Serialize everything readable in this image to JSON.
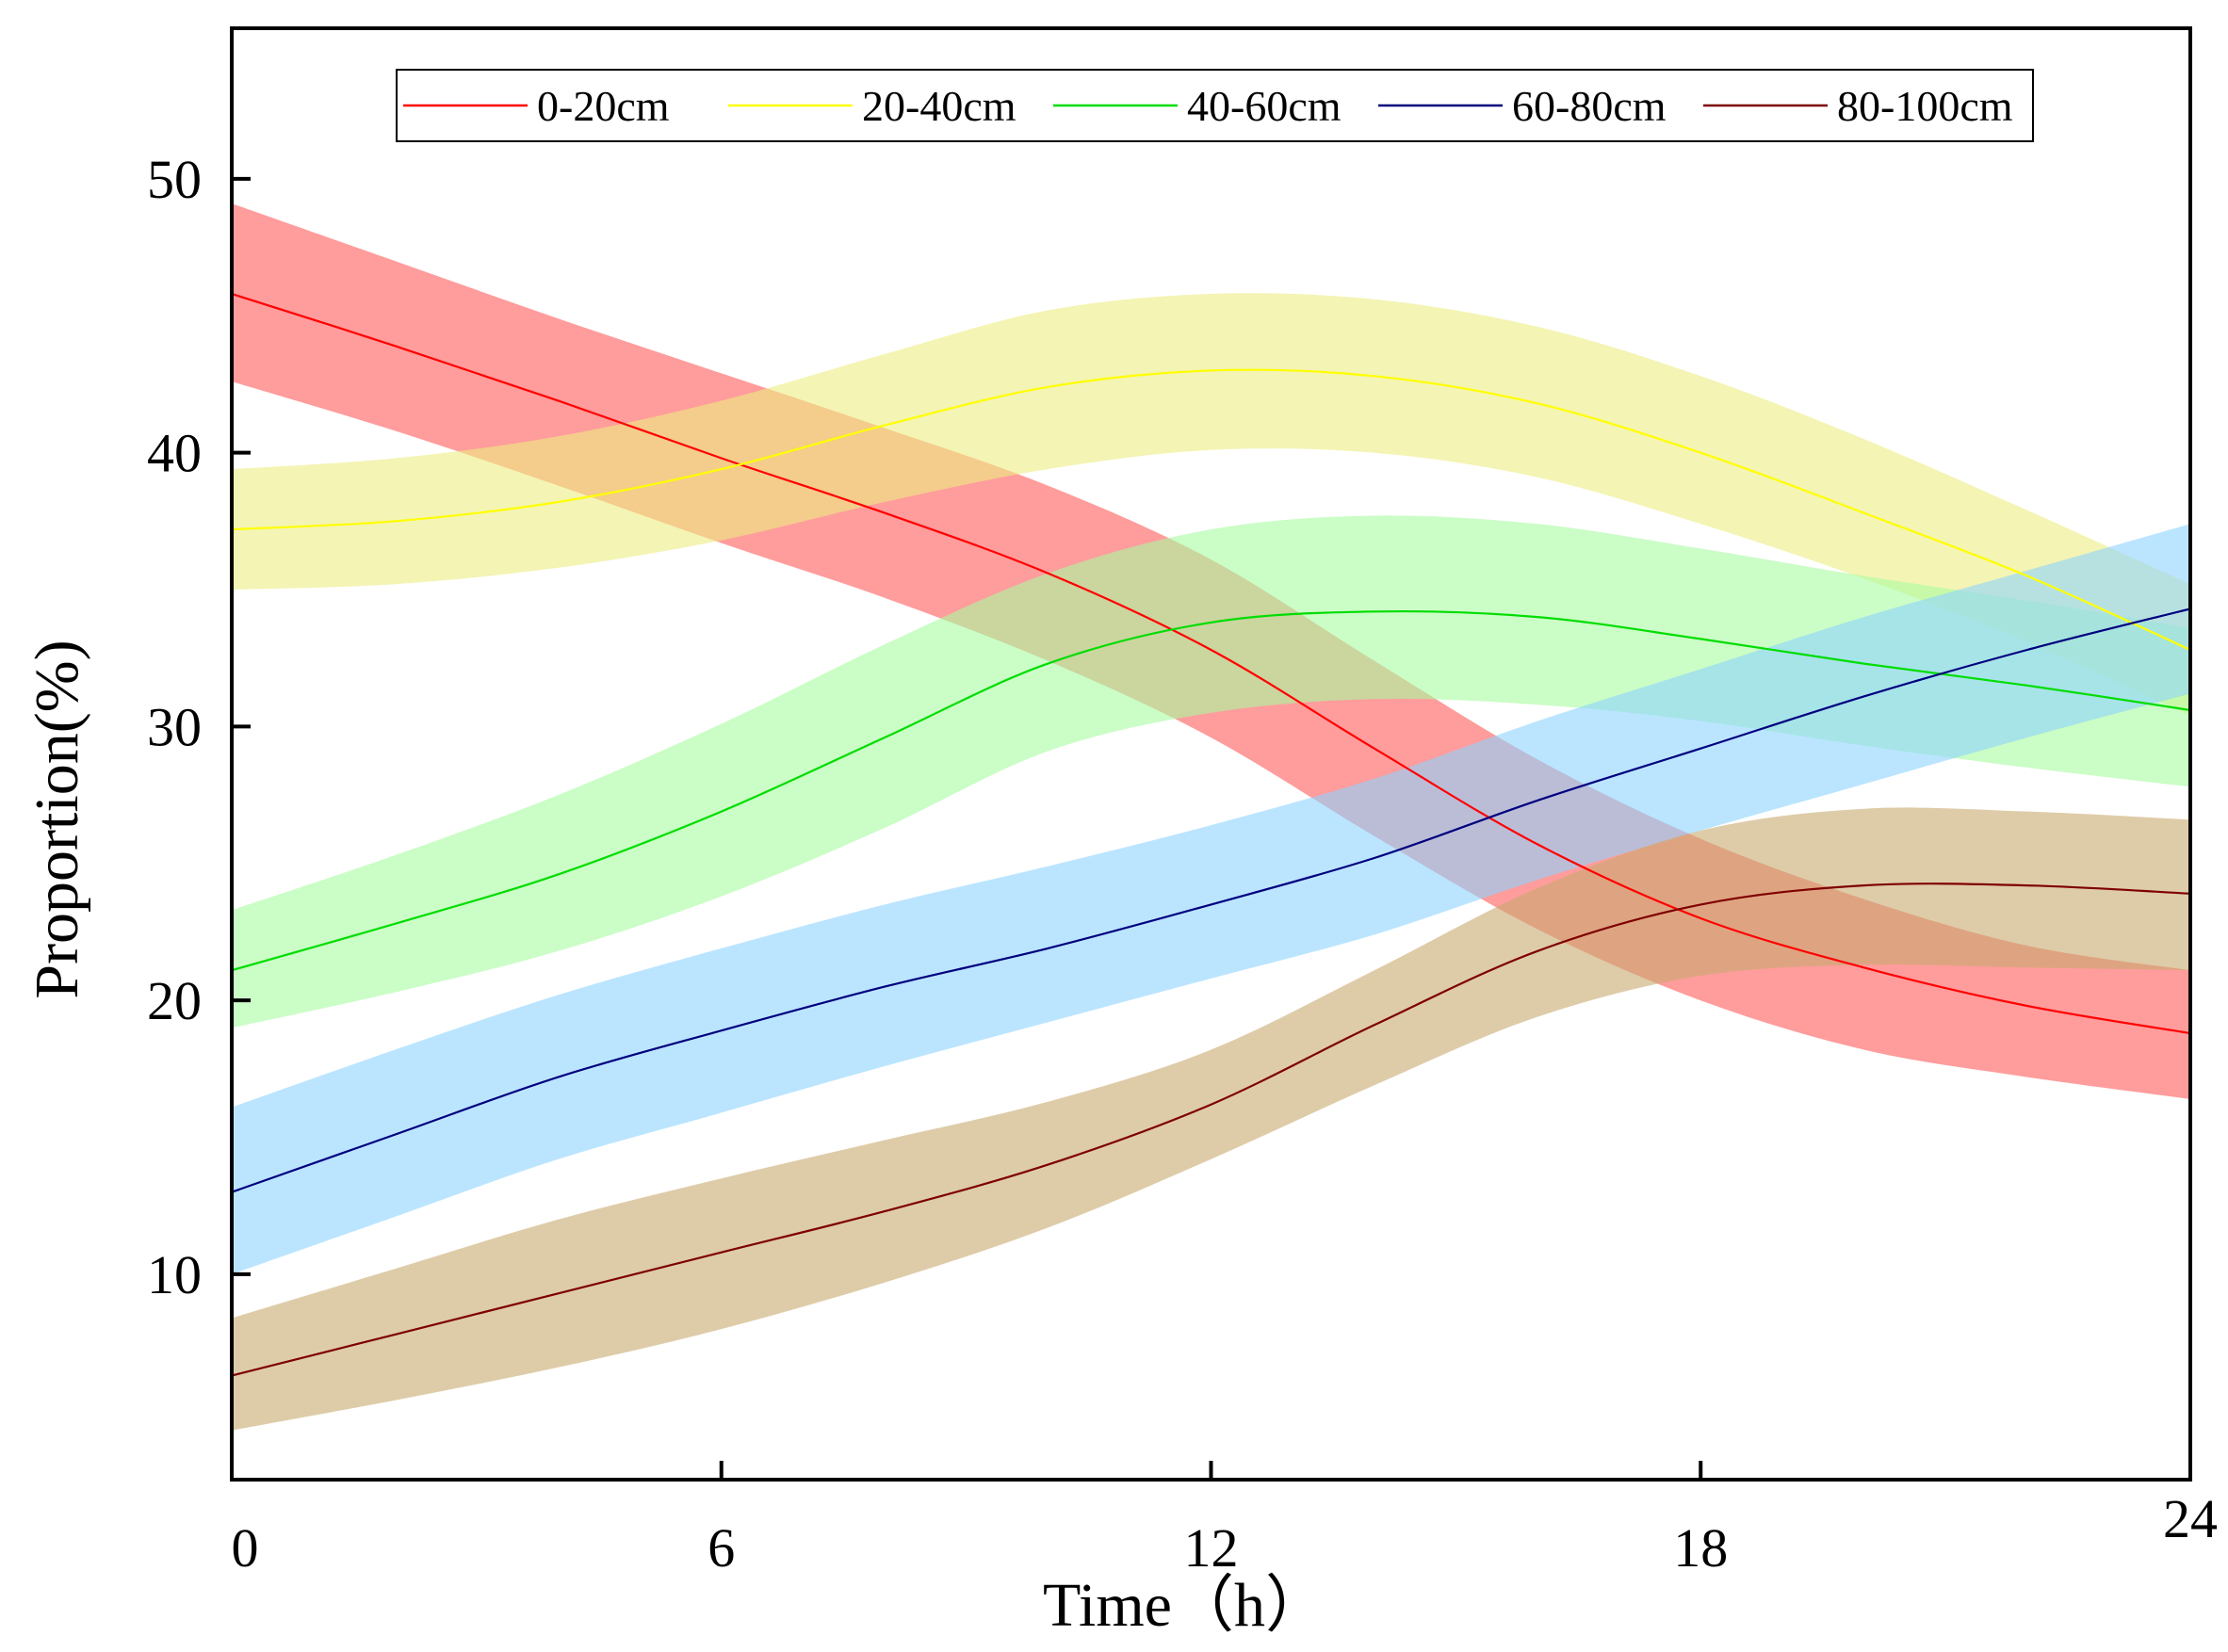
{
  "chart_data": {
    "type": "line",
    "title": "",
    "xlabel": "Time（h）",
    "ylabel": "Proportion(%)",
    "xlim": [
      0,
      24
    ],
    "ylim": [
      2.5,
      55.5
    ],
    "xticks": [
      0,
      6,
      12,
      18,
      24
    ],
    "xtick_labels": [
      "0",
      "6",
      "12",
      "18",
      "24"
    ],
    "yticks": [
      10,
      20,
      30,
      40,
      50
    ],
    "ytick_labels": [
      "10",
      "20",
      "30",
      "40",
      "50"
    ],
    "grid": false,
    "legend_position": "top",
    "x": [
      0,
      2,
      4,
      6,
      8,
      10,
      12,
      14,
      16,
      18,
      20,
      22,
      24
    ],
    "series": [
      {
        "name": "0-20cm",
        "line_color": "#ff0000",
        "band_color": "#ff5a5a",
        "values": [
          45.8,
          43.9,
          41.9,
          39.8,
          37.8,
          35.6,
          32.8,
          29.2,
          25.7,
          23.0,
          21.2,
          19.8,
          18.8
        ],
        "lower": [
          42.6,
          40.8,
          38.8,
          36.7,
          34.7,
          32.4,
          29.6,
          26.0,
          22.6,
          20.0,
          18.2,
          17.2,
          16.4
        ],
        "upper": [
          49.1,
          47.0,
          44.9,
          42.9,
          40.9,
          38.8,
          36.1,
          32.4,
          28.8,
          25.9,
          23.7,
          22.0,
          21.1
        ]
      },
      {
        "name": "20-40cm",
        "line_color": "#ffff00",
        "band_color": "#ecec82",
        "values": [
          37.2,
          37.5,
          38.2,
          39.4,
          41.0,
          42.4,
          43.0,
          42.8,
          41.8,
          40.0,
          37.8,
          35.5,
          32.8
        ],
        "lower": [
          35.0,
          35.2,
          35.8,
          36.8,
          38.2,
          39.4,
          40.1,
          40.0,
          39.1,
          37.4,
          35.4,
          33.1,
          30.4
        ],
        "upper": [
          39.4,
          39.8,
          40.6,
          41.9,
          43.6,
          45.2,
          45.8,
          45.6,
          44.6,
          42.8,
          40.5,
          37.9,
          35.2
        ]
      },
      {
        "name": "40-60cm",
        "line_color": "#00dd00",
        "band_color": "#a8fca0",
        "values": [
          21.1,
          22.8,
          24.6,
          26.9,
          29.6,
          32.3,
          33.8,
          34.2,
          34.0,
          33.2,
          32.3,
          31.5,
          30.6
        ],
        "lower": [
          19.0,
          20.3,
          21.8,
          23.8,
          26.3,
          29.1,
          30.5,
          31.0,
          30.8,
          30.2,
          29.3,
          28.5,
          27.8
        ],
        "upper": [
          23.3,
          25.3,
          27.5,
          30.1,
          33.0,
          35.6,
          37.2,
          37.7,
          37.4,
          36.5,
          35.5,
          34.6,
          33.6
        ]
      },
      {
        "name": "60-80cm",
        "line_color": "#00007f",
        "band_color": "#8ed4ff",
        "values": [
          13.0,
          15.1,
          17.2,
          18.9,
          20.5,
          21.9,
          23.5,
          25.2,
          27.3,
          29.2,
          31.1,
          32.8,
          34.3
        ],
        "lower": [
          10.0,
          12.1,
          14.2,
          15.9,
          17.6,
          19.2,
          20.8,
          22.4,
          24.4,
          26.2,
          27.9,
          29.6,
          31.2
        ],
        "upper": [
          16.1,
          18.2,
          20.2,
          21.9,
          23.5,
          24.9,
          26.4,
          28.1,
          30.2,
          32.1,
          34.0,
          35.7,
          37.4
        ]
      },
      {
        "name": "80-100cm",
        "line_color": "#7f0000",
        "band_color": "#c8aa70",
        "values": [
          6.3,
          7.8,
          9.3,
          10.8,
          12.3,
          14.0,
          16.2,
          19.1,
          21.8,
          23.5,
          24.2,
          24.2,
          23.9
        ],
        "lower": [
          4.3,
          5.4,
          6.6,
          8.0,
          9.7,
          11.7,
          14.2,
          16.9,
          19.4,
          20.9,
          21.3,
          21.2,
          21.1
        ],
        "upper": [
          8.4,
          10.2,
          12.0,
          13.5,
          14.9,
          16.3,
          18.2,
          21.1,
          24.1,
          26.2,
          27.0,
          26.9,
          26.6
        ]
      }
    ]
  }
}
